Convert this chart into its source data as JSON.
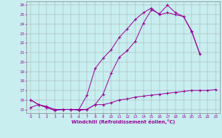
{
  "bg_color": "#c8eef0",
  "line_color": "#990099",
  "grid_color": "#a0a0a0",
  "xlabel": "Windchill (Refroidissement éolien,°C)",
  "xlim": [
    -0.5,
    23.5
  ],
  "ylim": [
    14.6,
    26.4
  ],
  "yticks": [
    15,
    16,
    17,
    18,
    19,
    20,
    21,
    22,
    23,
    24,
    25,
    26
  ],
  "xticks": [
    0,
    1,
    2,
    3,
    4,
    5,
    6,
    7,
    8,
    9,
    10,
    11,
    12,
    13,
    14,
    15,
    16,
    17,
    18,
    19,
    20,
    21,
    22,
    23
  ],
  "series": [
    {
      "x": [
        0,
        1,
        2,
        3,
        4,
        5,
        6,
        7,
        8,
        9,
        10,
        11,
        12,
        13,
        14,
        15,
        16,
        17,
        18,
        19,
        20,
        21
      ],
      "y": [
        16.0,
        15.5,
        15.2,
        14.9,
        15.0,
        15.0,
        15.0,
        15.0,
        15.5,
        16.6,
        18.8,
        20.5,
        21.2,
        22.2,
        24.1,
        25.5,
        25.1,
        26.0,
        25.2,
        24.8,
        23.3,
        20.9
      ]
    },
    {
      "x": [
        0,
        1,
        2,
        3,
        4,
        5,
        6,
        7,
        8,
        9,
        10,
        11,
        12,
        13,
        14,
        15,
        16,
        17,
        18,
        19,
        20,
        21
      ],
      "y": [
        16.0,
        15.5,
        15.2,
        14.9,
        15.0,
        15.0,
        15.0,
        16.5,
        19.3,
        20.4,
        21.3,
        22.6,
        23.5,
        24.5,
        25.2,
        25.7,
        25.0,
        25.2,
        25.0,
        24.8,
        23.2,
        20.9
      ]
    },
    {
      "x": [
        0,
        1,
        2,
        3,
        4,
        5,
        6,
        7,
        8,
        9,
        10,
        11,
        12,
        13,
        14,
        15,
        16,
        17,
        18,
        19,
        20,
        21,
        22,
        23
      ],
      "y": [
        15.2,
        15.5,
        15.3,
        15.0,
        15.0,
        15.0,
        14.9,
        15.0,
        15.5,
        15.5,
        15.7,
        16.0,
        16.1,
        16.3,
        16.4,
        16.5,
        16.6,
        16.7,
        16.8,
        16.9,
        17.0,
        17.0,
        17.0,
        17.1
      ]
    }
  ]
}
